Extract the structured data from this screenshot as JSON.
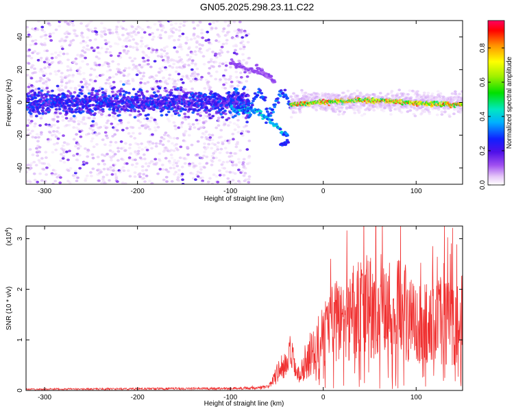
{
  "title": "GN05.2025.298.23.11.C22",
  "chart_data": [
    {
      "type": "heatmap",
      "xlabel": "Height of straight line (km)",
      "ylabel": "Frequency (Hz)",
      "xlim": [
        -320,
        150
      ],
      "ylim": [
        -50,
        50
      ],
      "xticks": [
        -300,
        -200,
        -100,
        0,
        100
      ],
      "yticks": [
        -40,
        -20,
        0,
        20,
        40
      ],
      "colorbar": {
        "label": "Normalized spectral amplitude",
        "ticks": [
          0.0,
          0.2,
          0.4,
          0.6,
          0.8
        ],
        "range": [
          0,
          0.96
        ]
      },
      "regions": [
        {
          "x_range": [
            -320,
            -80
          ],
          "description_values": {
            "dense_noise_freq_range": [
              -50,
              50
            ],
            "band_center_hz": 0,
            "band_halfwidth_hz": 4,
            "band_amplitude": 0.25
          }
        },
        {
          "x_range": [
            -80,
            -35
          ],
          "description_values": {
            "branch_upper_start_hz": 22,
            "branch_lower_end_hz": -24,
            "band_amplitude": 0.4
          }
        },
        {
          "x_range": [
            -35,
            150
          ],
          "description_values": {
            "band_center_hz": 0,
            "band_halfwidth_hz": 2,
            "band_amplitude": 0.85
          }
        }
      ]
    },
    {
      "type": "line",
      "xlabel": "Height of straight line (km)",
      "ylabel": "SNR (10 * v/v)",
      "y_multiplier": "(x10^4)",
      "y_multiplier_base": "(x10",
      "y_multiplier_exp": "4",
      "y_multiplier_close": ")",
      "xlim": [
        -320,
        150
      ],
      "ylim": [
        0,
        3.25
      ],
      "xticks": [
        -300,
        -200,
        -100,
        0,
        100
      ],
      "yticks": [
        0,
        1,
        2,
        3
      ],
      "color": "#f03030",
      "envelope": {
        "x": [
          -320,
          -100,
          -60,
          -50,
          -45,
          -40,
          -35,
          -30,
          -25,
          -20,
          -10,
          0,
          10,
          20,
          30,
          40,
          50,
          60,
          70,
          80,
          90,
          100,
          110,
          120,
          130,
          140,
          150
        ],
        "y": [
          0.03,
          0.05,
          0.08,
          0.4,
          0.6,
          0.55,
          0.9,
          0.5,
          0.3,
          0.7,
          1.0,
          1.4,
          1.6,
          1.8,
          1.9,
          2.0,
          2.1,
          2.1,
          2.0,
          2.0,
          1.9,
          1.8,
          1.7,
          1.8,
          1.7,
          1.6,
          1.6
        ]
      }
    }
  ]
}
